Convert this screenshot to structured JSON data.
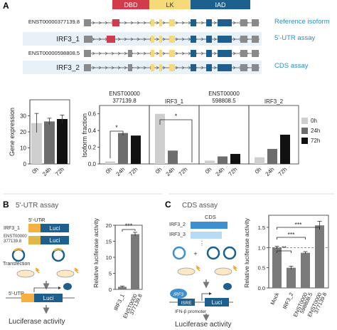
{
  "panel_a": {
    "letter": "A",
    "domains": [
      {
        "label": "DBD",
        "color": "#d23b4b"
      },
      {
        "label": "LK",
        "color": "#f6d978"
      },
      {
        "label": "IAD",
        "color": "#1d5f8e"
      }
    ],
    "isoforms": [
      {
        "name": "ENST00000377139.8",
        "assay": "Reference isoform"
      },
      {
        "name": "IRF3_1",
        "assay": "5'-UTR assay"
      },
      {
        "name": "ENST00000598808.5",
        "assay": "CDS assay"
      },
      {
        "name": "IRF3_2",
        "assay": ""
      }
    ],
    "colors": {
      "exon_gray": "#8a8a8a",
      "assay_text": "#2a8fc6",
      "band": "#e8f1f8"
    }
  },
  "chart_data": [
    {
      "type": "bar",
      "ylabel": "Gene expression",
      "categories": [
        "0h",
        "24h",
        "72h"
      ],
      "values": [
        25.5,
        26.5,
        28
      ],
      "errors": [
        6,
        2,
        2.5
      ],
      "ylim": [
        0,
        40
      ],
      "yticks": [
        "0",
        "10",
        "20",
        "30"
      ],
      "colors": [
        "#cfcfcf",
        "#6d6d6d",
        "#111111"
      ]
    },
    {
      "type": "bar",
      "ylabel": "Isoform fraction",
      "panels": [
        {
          "title_line1": "ENST00000",
          "title_line2": "377139.8",
          "values": [
            0.03,
            0.37,
            0.34
          ],
          "categories": [
            "0h",
            "24h",
            "72h"
          ]
        },
        {
          "title_line1": "IRF3_1",
          "title_line2": "",
          "values": [
            0.6,
            0.16,
            0.0
          ],
          "categories": [
            "0h",
            "24h",
            "72h"
          ]
        },
        {
          "title_line1": "ENST00000",
          "title_line2": "598808.5",
          "values": [
            0.04,
            0.09,
            0.12
          ],
          "categories": [
            "0h",
            "24h",
            "72h"
          ]
        },
        {
          "title_line1": "IRF3_2",
          "title_line2": "",
          "values": [
            0.08,
            0.18,
            0.35
          ],
          "categories": [
            "0h",
            "24h",
            "72h"
          ]
        }
      ],
      "ylim": [
        0,
        0.7
      ],
      "yticks": [
        "0.0",
        "0.2",
        "0.4",
        "0.6"
      ],
      "legend": [
        {
          "label": "0h",
          "color": "#cfcfcf"
        },
        {
          "label": "24h",
          "color": "#6d6d6d"
        },
        {
          "label": "72h",
          "color": "#111111"
        }
      ],
      "legend_position": "right",
      "significance": [
        "*",
        "*"
      ]
    },
    {
      "type": "bar",
      "ylabel": "Relative luciferase activity",
      "categories": [
        "IRF3_1",
        "ENST0000 377139.8"
      ],
      "values": [
        0.8,
        17.2
      ],
      "errors": [
        0.25,
        0.6
      ],
      "ylim": [
        0,
        20
      ],
      "yticks": [
        "0",
        "5",
        "10",
        "15",
        "20"
      ],
      "significance": "***",
      "color": "#7a7a7a"
    },
    {
      "type": "bar",
      "ylabel": "Relative luciferase activity",
      "categories": [
        "Mock",
        "IRF3_2",
        "ENST0000 598808.5",
        "ENST0000 377139.8"
      ],
      "values": [
        1.0,
        0.5,
        0.87,
        1.55
      ],
      "errors": [
        0.03,
        0.04,
        0.03,
        0.1
      ],
      "ylim": [
        0,
        1.8
      ],
      "yticks": [
        "0.0",
        "0.5",
        "1.0",
        "1.5"
      ],
      "reference_line": 1.0,
      "significance": [
        "**",
        "***",
        "***"
      ],
      "color": "#7a7a7a"
    }
  ],
  "panel_b": {
    "letter": "B",
    "title": "5'-UTR assay",
    "utr_label": "5'-UTR",
    "construct1": "IRF3_1",
    "construct2_line1": "ENST00000",
    "construct2_line2": "377139.8",
    "luci": "Luci",
    "transfection": "Transfection",
    "utr_label2": "5'-UTR",
    "luci2": "Luci",
    "result": "Luciferase activity"
  },
  "panel_c": {
    "letter": "C",
    "title": "CDS assay",
    "cds_label": "CDS",
    "construct1": "IRF3_2",
    "construct2": "IRF3_3",
    "ellipsis": "⋮",
    "irf3": "IRF3",
    "isre": "ISRE",
    "luci": "Luci",
    "promoter": "IFN-β promoter",
    "result": "Luciferase activity"
  }
}
